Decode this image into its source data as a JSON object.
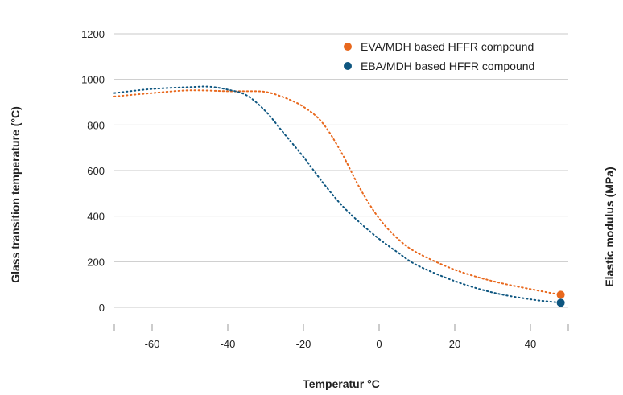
{
  "chart_data": {
    "type": "line",
    "title": "",
    "xlabel": "Temperatur °C",
    "ylabel": "Glass transition temperature (°C)",
    "y2label": "Elastic modulus (MPa)",
    "xlim": [
      -70,
      50
    ],
    "ylim": [
      0,
      1200
    ],
    "x_ticks": [
      -60,
      -40,
      -20,
      0,
      20,
      40
    ],
    "x_tick_labels": [
      "-60",
      "-40",
      "-20",
      "0",
      "20",
      "40"
    ],
    "y_ticks": [
      0,
      200,
      400,
      600,
      800,
      1000,
      1200
    ],
    "y_tick_labels": [
      "0",
      "200",
      "400",
      "600",
      "800",
      "1000",
      "1200"
    ],
    "grid": "horizontal",
    "legend_position": "top-right",
    "line_style": "dotted",
    "series": [
      {
        "name": "EVA/MDH based HFFR compound",
        "color": "#e8681d",
        "x": [
          -70,
          -60,
          -50,
          -40,
          -35,
          -30,
          -25,
          -20,
          -15,
          -10,
          -5,
          0,
          5,
          10,
          20,
          30,
          40,
          48
        ],
        "y": [
          925,
          940,
          952,
          948,
          948,
          945,
          920,
          880,
          810,
          680,
          520,
          390,
          300,
          240,
          165,
          115,
          80,
          55
        ]
      },
      {
        "name": "EBA/MDH based HFFR compound",
        "color": "#0e5680",
        "x": [
          -70,
          -60,
          -50,
          -45,
          -40,
          -35,
          -30,
          -25,
          -20,
          -15,
          -10,
          -5,
          0,
          5,
          10,
          20,
          30,
          40,
          48
        ],
        "y": [
          940,
          958,
          966,
          968,
          955,
          930,
          860,
          760,
          660,
          550,
          450,
          370,
          300,
          240,
          185,
          115,
          65,
          35,
          20
        ]
      }
    ]
  }
}
